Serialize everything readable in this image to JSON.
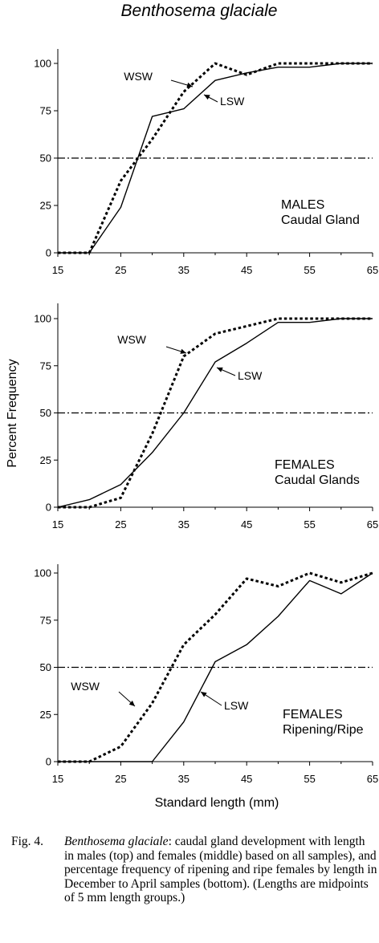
{
  "figure_title": "Benthosema glaciale",
  "y_axis_label": "Percent Frequency",
  "x_axis_label": "Standard length (mm)",
  "caption": {
    "fig_label": "Fig. 4.",
    "species": "Benthosema glaciale",
    "text": ": caudal gland development with length in males (top) and females (middle) based on all samples), and percentage frequency of ripening and ripe females by length in December to April samples (bottom). (Lengths are midpoints of 5 mm length groups.)"
  },
  "chart_data": [
    {
      "type": "line",
      "panel_label": [
        "MALES",
        "Caudal Gland"
      ],
      "x": [
        15,
        20,
        25,
        30,
        35,
        40,
        45,
        50,
        55,
        60,
        65
      ],
      "xlim": [
        15,
        65
      ],
      "ylim": [
        0,
        100
      ],
      "xticks": [
        15,
        25,
        35,
        45,
        55,
        65
      ],
      "yticks": [
        0,
        25,
        50,
        75,
        100
      ],
      "reference_line": 50,
      "series": [
        {
          "name": "LSW",
          "style": "solid",
          "values": [
            0,
            0,
            24,
            72,
            76,
            91,
            95,
            98,
            98,
            100,
            100
          ]
        },
        {
          "name": "WSW",
          "style": "dotted",
          "values": [
            0,
            0,
            38,
            60,
            85,
            100,
            94,
            100,
            100,
            100,
            100
          ]
        }
      ]
    },
    {
      "type": "line",
      "panel_label": [
        "FEMALES",
        "Caudal Glands"
      ],
      "x": [
        15,
        20,
        25,
        30,
        35,
        40,
        45,
        50,
        55,
        60,
        65
      ],
      "xlim": [
        15,
        65
      ],
      "ylim": [
        0,
        100
      ],
      "xticks": [
        15,
        25,
        35,
        45,
        55,
        65
      ],
      "yticks": [
        0,
        25,
        50,
        75,
        100
      ],
      "reference_line": 50,
      "series": [
        {
          "name": "LSW",
          "style": "solid",
          "values": [
            0,
            4,
            12,
            29,
            50,
            77,
            87,
            98,
            98,
            100,
            100
          ]
        },
        {
          "name": "WSW",
          "style": "dotted",
          "values": [
            0,
            0,
            5,
            39,
            80,
            92,
            96,
            100,
            100,
            100,
            100
          ]
        }
      ]
    },
    {
      "type": "line",
      "panel_label": [
        "FEMALES",
        "Ripening/Ripe"
      ],
      "x": [
        15,
        20,
        25,
        30,
        35,
        40,
        45,
        50,
        55,
        60,
        65
      ],
      "xlim": [
        15,
        65
      ],
      "ylim": [
        0,
        100
      ],
      "xticks": [
        15,
        25,
        35,
        45,
        55,
        65
      ],
      "yticks": [
        0,
        25,
        50,
        75,
        100
      ],
      "reference_line": 50,
      "series": [
        {
          "name": "LSW",
          "style": "solid",
          "values": [
            0,
            0,
            0,
            0,
            21,
            53,
            62,
            77,
            96,
            89,
            100
          ]
        },
        {
          "name": "WSW",
          "style": "dotted",
          "values": [
            0,
            0,
            8,
            31,
            62,
            78,
            97,
            93,
            100,
            95,
            100
          ]
        }
      ]
    }
  ]
}
